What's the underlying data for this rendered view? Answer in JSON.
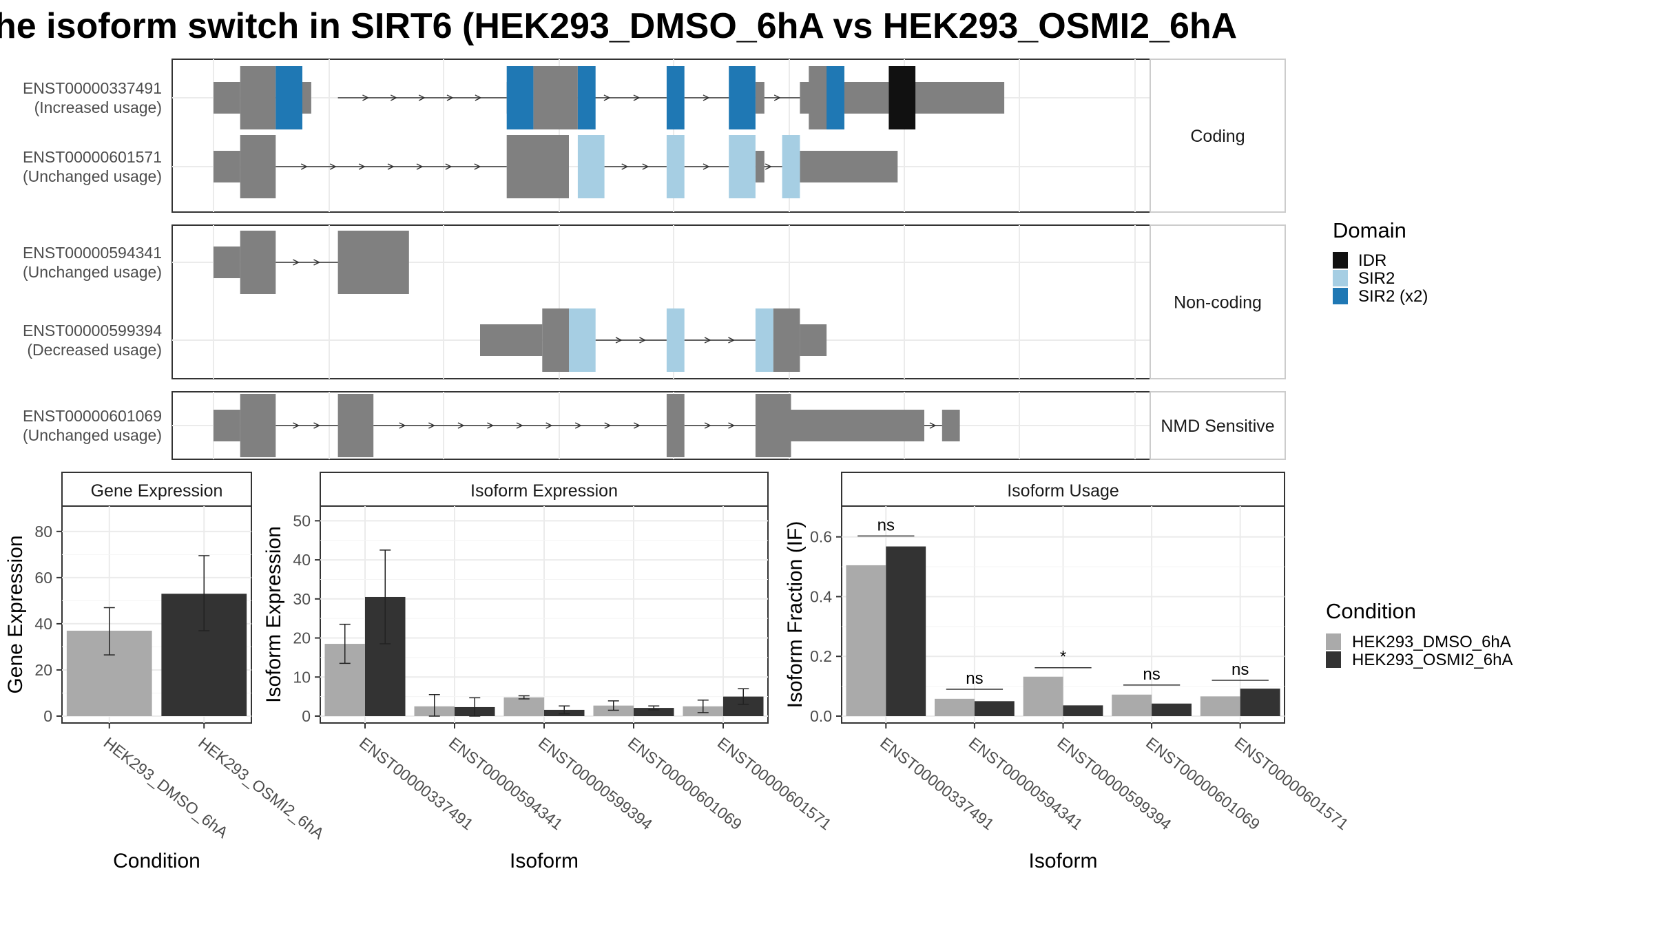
{
  "title": "he isoform switch in SIRT6 (HEK293_DMSO_6hA vs HEK293_OSMI2_6hA",
  "colors": {
    "exon": "#808080",
    "IDR": "#111111",
    "SIR2": "#a6cee3",
    "SIR2 (x2)": "#1f78b4",
    "HEK293_DMSO_6hA": "#aaaaaa",
    "HEK293_OSMI2_6hA": "#333333"
  },
  "legends": {
    "domain": {
      "title": "Domain",
      "items": [
        "IDR",
        "SIR2",
        "SIR2 (x2)"
      ]
    },
    "condition": {
      "title": "Condition",
      "items": [
        "HEK293_DMSO_6hA",
        "HEK293_OSMI2_6hA"
      ]
    }
  },
  "chart_data": [
    {
      "type": "gene-structure",
      "groups": [
        {
          "label": "Coding",
          "rows": [
            {
              "id": "ENST00000337491",
              "usage": "(Increased usage)",
              "utr": [
                [
                  0.0,
                  0.03
                ],
                [
                  0.1,
                  0.11
                ],
                [
                  0.33,
                  0.33
                ],
                [
                  0.61,
                  0.62
                ],
                [
                  0.66,
                  0.76
                ],
                [
                  0.76,
                  0.89
                ]
              ],
              "cds": [
                [
                  0.03,
                  0.07
                ],
                [
                  0.36,
                  0.41
                ],
                [
                  0.67,
                  0.71
                ]
              ],
              "domains": [
                {
                  "name": "SIR2 (x2)",
                  "range": [
                    0.07,
                    0.1
                  ]
                },
                {
                  "name": "SIR2 (x2)",
                  "range": [
                    0.33,
                    0.35
                  ]
                },
                {
                  "name": "SIR2 (x2)",
                  "range": [
                    0.35,
                    0.36
                  ]
                },
                {
                  "name": "SIR2 (x2)",
                  "range": [
                    0.41,
                    0.43
                  ]
                },
                {
                  "name": "SIR2 (x2)",
                  "range": [
                    0.51,
                    0.53
                  ]
                },
                {
                  "name": "SIR2 (x2)",
                  "range": [
                    0.58,
                    0.61
                  ]
                },
                {
                  "name": "SIR2 (x2)",
                  "range": [
                    0.69,
                    0.71
                  ]
                },
                {
                  "name": "IDR",
                  "range": [
                    0.76,
                    0.79
                  ]
                }
              ],
              "introns": [
                [
                  0.07,
                  0.1
                ],
                [
                  0.14,
                  0.33
                ],
                [
                  0.41,
                  0.51
                ],
                [
                  0.53,
                  0.58
                ],
                [
                  0.61,
                  0.66
                ]
              ]
            },
            {
              "id": "ENST00000601571",
              "usage": "(Unchanged usage)",
              "utr": [
                [
                  0.0,
                  0.03
                ],
                [
                  0.61,
                  0.62
                ],
                [
                  0.66,
                  0.77
                ]
              ],
              "cds": [
                [
                  0.03,
                  0.07
                ],
                [
                  0.33,
                  0.4
                ]
              ],
              "domains": [
                {
                  "name": "SIR2",
                  "range": [
                    0.41,
                    0.44
                  ]
                },
                {
                  "name": "SIR2",
                  "range": [
                    0.51,
                    0.53
                  ]
                },
                {
                  "name": "SIR2",
                  "range": [
                    0.58,
                    0.61
                  ]
                },
                {
                  "name": "SIR2",
                  "range": [
                    0.64,
                    0.66
                  ]
                }
              ],
              "introns": [
                [
                  0.07,
                  0.33
                ],
                [
                  0.44,
                  0.51
                ],
                [
                  0.53,
                  0.58
                ],
                [
                  0.61,
                  0.64
                ]
              ]
            }
          ]
        },
        {
          "label": "Non-coding",
          "rows": [
            {
              "id": "ENST00000594341",
              "usage": "(Unchanged usage)",
              "utr": [
                [
                  0.0,
                  0.03
                ]
              ],
              "cds": [
                [
                  0.03,
                  0.07
                ],
                [
                  0.14,
                  0.22
                ]
              ],
              "domains": [],
              "introns": [
                [
                  0.07,
                  0.14
                ]
              ]
            },
            {
              "id": "ENST00000599394",
              "usage": "(Decreased usage)",
              "utr": [
                [
                  0.3,
                  0.37
                ],
                [
                  0.66,
                  0.69
                ]
              ],
              "cds": [
                [
                  0.37,
                  0.4
                ],
                [
                  0.63,
                  0.66
                ]
              ],
              "domains": [
                {
                  "name": "SIR2",
                  "range": [
                    0.4,
                    0.43
                  ]
                },
                {
                  "name": "SIR2",
                  "range": [
                    0.51,
                    0.53
                  ]
                },
                {
                  "name": "SIR2",
                  "range": [
                    0.61,
                    0.63
                  ]
                }
              ],
              "introns": [
                [
                  0.43,
                  0.51
                ],
                [
                  0.53,
                  0.61
                ]
              ]
            }
          ]
        },
        {
          "label": "NMD Sensitive",
          "rows": [
            {
              "id": "ENST00000601069",
              "usage": "(Unchanged usage)",
              "utr": [
                [
                  0.0,
                  0.03
                ],
                [
                  0.63,
                  0.8
                ],
                [
                  0.82,
                  0.84
                ]
              ],
              "cds": [
                [
                  0.03,
                  0.07
                ],
                [
                  0.14,
                  0.18
                ],
                [
                  0.51,
                  0.53
                ],
                [
                  0.61,
                  0.65
                ]
              ],
              "domains": [],
              "introns": [
                [
                  0.07,
                  0.14
                ],
                [
                  0.18,
                  0.51
                ],
                [
                  0.53,
                  0.61
                ],
                [
                  0.8,
                  0.82
                ]
              ]
            }
          ]
        }
      ]
    },
    {
      "type": "bar",
      "title": "Gene Expression",
      "xlabel": "Condition",
      "ylabel": "Gene Expression",
      "ylim": [
        0,
        88
      ],
      "yticks": [
        0,
        20,
        40,
        60,
        80
      ],
      "categories": [
        "HEK293_DMSO_6hA",
        "HEK293_OSMI2_6hA"
      ],
      "values": [
        37,
        53
      ],
      "errors": [
        [
          26.5,
          47
        ],
        [
          37,
          69.5
        ]
      ]
    },
    {
      "type": "bar",
      "title": "Isoform Expression",
      "xlabel": "Isoform",
      "ylabel": "Isoform Expression",
      "ylim": [
        0,
        52
      ],
      "yticks": [
        0,
        10,
        20,
        30,
        40,
        50
      ],
      "categories": [
        "ENST00000337491",
        "ENST00000594341",
        "ENST00000599394",
        "ENST00000601069",
        "ENST00000601571"
      ],
      "series": [
        {
          "name": "HEK293_DMSO_6hA",
          "values": [
            18.5,
            2.5,
            4.8,
            2.7,
            2.5
          ],
          "errors": [
            [
              13.5,
              23.5
            ],
            [
              0,
              5.5
            ],
            [
              4.4,
              5.2
            ],
            [
              1.5,
              3.9
            ],
            [
              0.9,
              4.1
            ]
          ]
        },
        {
          "name": "HEK293_OSMI2_6hA",
          "values": [
            30.5,
            2.3,
            1.6,
            2.1,
            5
          ],
          "errors": [
            [
              18.5,
              42.5
            ],
            [
              0,
              4.7
            ],
            [
              0.6,
              2.6
            ],
            [
              1.6,
              2.6
            ],
            [
              3,
              7
            ]
          ]
        }
      ]
    },
    {
      "type": "bar",
      "title": "Isoform Usage",
      "xlabel": "Isoform",
      "ylabel": "Isoform Fraction (IF)",
      "ylim": [
        0,
        0.68
      ],
      "yticks": [
        0.0,
        0.2,
        0.4,
        0.6
      ],
      "categories": [
        "ENST00000337491",
        "ENST00000594341",
        "ENST00000599394",
        "ENST00000601069",
        "ENST00000601571"
      ],
      "series": [
        {
          "name": "HEK293_DMSO_6hA",
          "values": [
            0.505,
            0.058,
            0.132,
            0.072,
            0.066
          ]
        },
        {
          "name": "HEK293_OSMI2_6hA",
          "values": [
            0.568,
            0.05,
            0.036,
            0.042,
            0.092
          ]
        }
      ],
      "significance": [
        {
          "label": "ns",
          "y": 0.603
        },
        {
          "label": "ns",
          "y": 0.09
        },
        {
          "label": "*",
          "y": 0.162
        },
        {
          "label": "ns",
          "y": 0.104
        },
        {
          "label": "ns",
          "y": 0.12
        }
      ]
    }
  ]
}
